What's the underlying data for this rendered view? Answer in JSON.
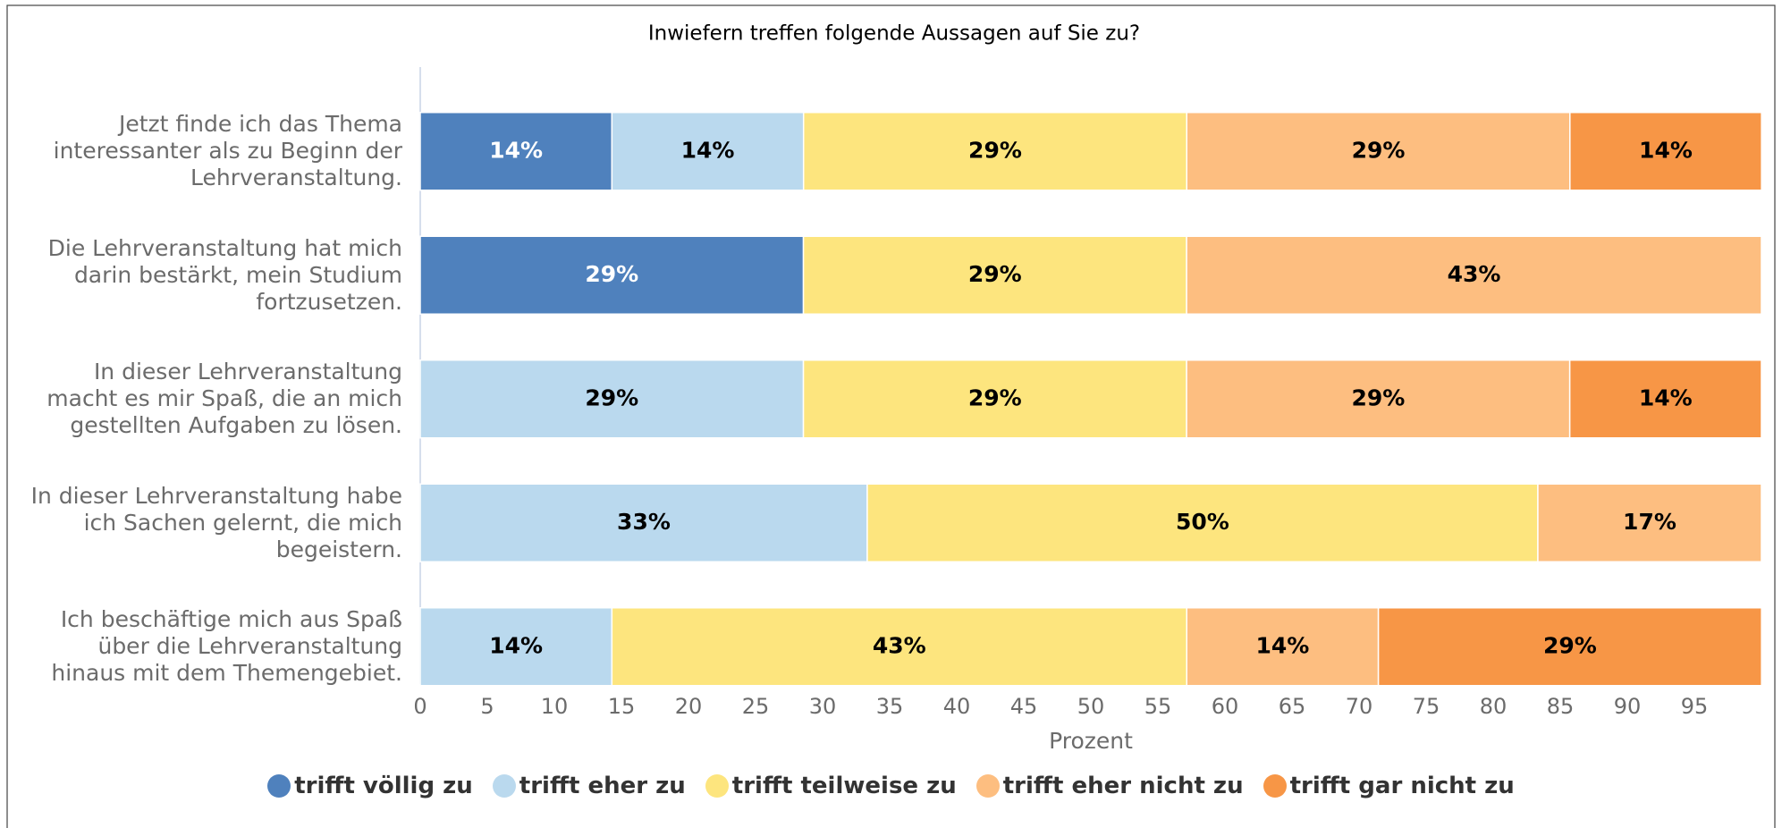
{
  "chart_data": {
    "type": "stacked-barh",
    "title": "Inwiefern treffen folgende Aussagen auf Sie zu?",
    "xlabel": "Prozent",
    "categories": [
      "Jetzt finde ich das Thema\ninteressanter als zu Beginn der\nLehrveranstaltung.",
      "Die Lehrveranstaltung hat mich\ndarin bestärkt, mein Studium\nfortzusetzen.",
      "In dieser Lehrveranstaltung\nmacht es mir Spaß, die an mich\ngestellten Aufgaben zu lösen.",
      "In dieser Lehrveranstaltung habe\nich Sachen gelernt, die mich\nbegeistern.",
      "Ich beschäftige mich aus Spaß\nüber die Lehrveranstaltung\nhinaus mit dem Themengebiet."
    ],
    "series": [
      {
        "name": "trifft völlig zu",
        "color": "#4f81bd",
        "label_color": "#ffffff",
        "values": [
          14.29,
          28.57,
          null,
          null,
          null
        ],
        "value_labels": [
          "14%",
          "29%",
          null,
          null,
          null
        ]
      },
      {
        "name": "trifft eher zu",
        "color": "#bad9ee",
        "label_color": "#000000",
        "values": [
          14.29,
          null,
          28.57,
          33.33,
          14.29
        ],
        "value_labels": [
          "14%",
          null,
          "29%",
          "33%",
          "14%"
        ]
      },
      {
        "name": "trifft teilweise zu",
        "color": "#fde57e",
        "label_color": "#000000",
        "values": [
          28.57,
          28.57,
          28.57,
          50.0,
          42.86
        ],
        "value_labels": [
          "29%",
          "29%",
          "29%",
          "50%",
          "43%"
        ]
      },
      {
        "name": "trifft eher nicht zu",
        "color": "#fdbe80",
        "label_color": "#000000",
        "values": [
          28.57,
          42.86,
          28.57,
          16.67,
          14.29
        ],
        "value_labels": [
          "29%",
          "43%",
          "29%",
          "17%",
          "14%"
        ]
      },
      {
        "name": "trifft gar nicht zu",
        "color": "#f79646",
        "label_color": "#000000",
        "values": [
          14.29,
          null,
          14.29,
          null,
          28.57
        ],
        "value_labels": [
          "14%",
          null,
          "14%",
          null,
          "29%"
        ]
      }
    ],
    "xlim": [
      0,
      100
    ],
    "xticks": [
      0,
      5,
      10,
      15,
      20,
      25,
      30,
      35,
      40,
      45,
      50,
      55,
      60,
      65,
      70,
      75,
      80,
      85,
      90,
      95
    ],
    "grid": false,
    "legend": "bottom"
  }
}
